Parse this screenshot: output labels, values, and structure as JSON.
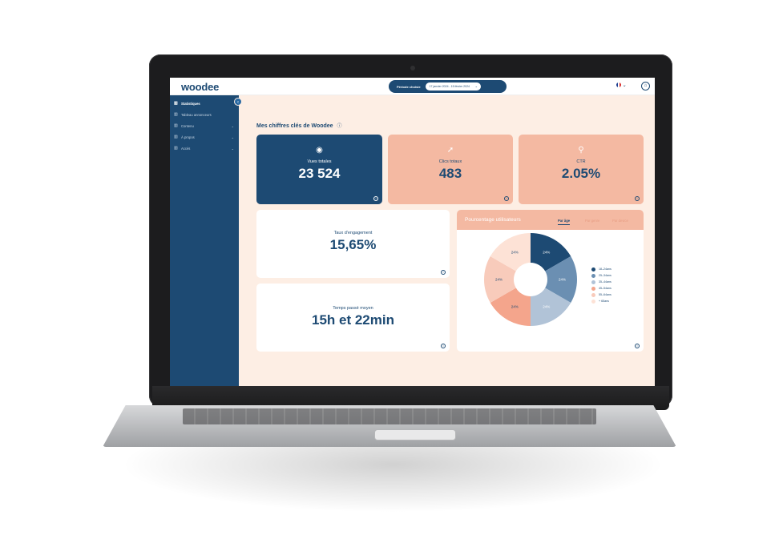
{
  "app": {
    "logo": "woodee"
  },
  "topbar": {
    "period_label": "Période choisie",
    "period_range": "17 janvier 2024 - 15 février 2024",
    "chevron": "⌄",
    "lang_chevron": "⌄",
    "flag_icon": "flag-fr-icon",
    "user_icon": "user-icon"
  },
  "sidebar": {
    "items": [
      {
        "label": "Statistiques",
        "icon": "chart-icon",
        "active": true
      },
      {
        "label": "Tableau annonceurs",
        "icon": "chart-icon"
      },
      {
        "label": "Contenu",
        "icon": "chart-icon",
        "expand": "⌄"
      },
      {
        "label": "À propos",
        "icon": "chart-icon",
        "expand": "⌄"
      },
      {
        "label": "Accès",
        "icon": "chart-icon",
        "expand": "⌄"
      }
    ],
    "collapse": "‹"
  },
  "main": {
    "heading": "Mes chiffres clés de Woodee",
    "info": "ⓘ",
    "cards": {
      "views": {
        "label": "Vues totales",
        "value": "23 524",
        "icon": "eye-icon"
      },
      "clicks": {
        "label": "Clics totaux",
        "value": "483",
        "icon": "cursor-icon"
      },
      "ctr": {
        "label": "CTR",
        "value": "2.05%",
        "icon": "magnifier-icon"
      },
      "engagement": {
        "label": "Taux d'engagement",
        "value": "15,65%"
      },
      "time": {
        "label": "Temps passé moyen",
        "value": "15h et 22min"
      }
    },
    "pie": {
      "title": "Pourcentage utilisateurs",
      "tabs": [
        "Par âge",
        "Par genre",
        "Par device"
      ]
    }
  },
  "chart_data": {
    "type": "pie",
    "variant": "donut",
    "title": "Pourcentage utilisateurs",
    "categories": [
      "18–24ans",
      "25–34ans",
      "35–44ans",
      "45–54ans",
      "55–64ans",
      "+ 65ans"
    ],
    "values": [
      24,
      24,
      24,
      24,
      24,
      24
    ],
    "colors": [
      "#1d4a73",
      "#6b8fb2",
      "#b1c3d7",
      "#f4a58c",
      "#f8cbbb",
      "#fde2d6"
    ],
    "legend": "right"
  }
}
